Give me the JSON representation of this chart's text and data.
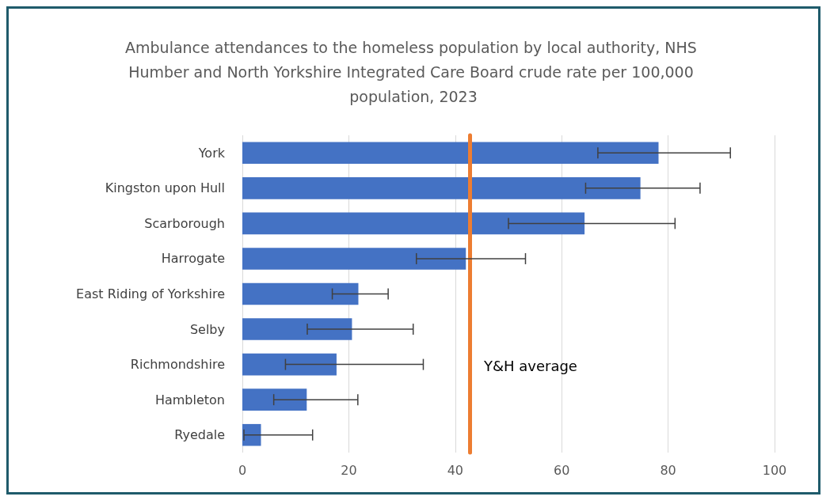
{
  "chart_data": {
    "type": "bar",
    "orientation": "horizontal",
    "title": "Ambulance attendances to the homeless population by local authority, NHS Humber and North Yorkshire Integrated Care Board crude rate per 100,000 population, 2023",
    "categories": [
      "York",
      "Kingston upon Hull",
      "Scarborough",
      "Harrogate",
      "East Riding of Yorkshire",
      "Selby",
      "Richmondshire",
      "Hambleton",
      "Ryedale"
    ],
    "values": [
      78.2,
      74.8,
      64.3,
      42.0,
      21.8,
      20.6,
      17.7,
      12.1,
      3.5
    ],
    "errors": [
      [
        66.8,
        91.7
      ],
      [
        64.5,
        86.0
      ],
      [
        50.0,
        81.3
      ],
      [
        32.7,
        53.2
      ],
      [
        16.9,
        27.4
      ],
      [
        12.2,
        32.1
      ],
      [
        8.1,
        34.0
      ],
      [
        5.9,
        21.7
      ],
      [
        0.3,
        13.2
      ]
    ],
    "color": "#4472c4",
    "xlim": [
      0,
      100
    ],
    "xticks": [
      0,
      20,
      40,
      60,
      80,
      100
    ],
    "grid": "x",
    "ref_lines": [
      {
        "axis": "x",
        "value": 42.7,
        "label": "Y&H average",
        "color": "#ed7d31",
        "line_style": "solid"
      }
    ]
  }
}
